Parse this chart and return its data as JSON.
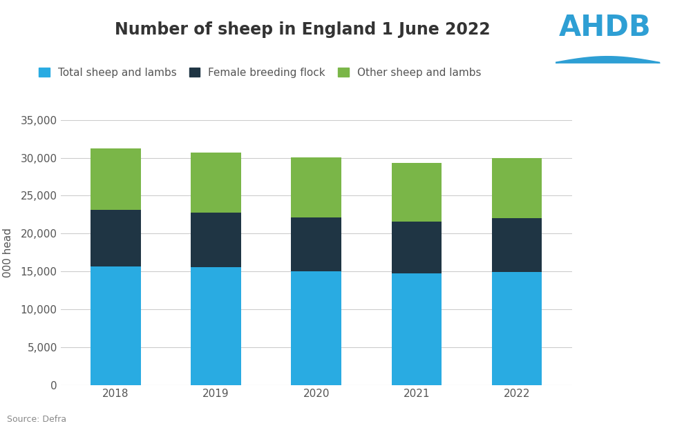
{
  "title": "Number of sheep in England 1 June 2022",
  "ylabel": "000 head",
  "source": "Source: Defra",
  "years": [
    "2018",
    "2019",
    "2020",
    "2021",
    "2022"
  ],
  "total_sheep_lambs": [
    15700,
    15600,
    15050,
    14750,
    14950
  ],
  "female_breeding_flock": [
    7450,
    7200,
    7050,
    6850,
    7050
  ],
  "other_sheep_lambs": [
    8050,
    7900,
    7950,
    7700,
    7950
  ],
  "color_total": "#29ABE2",
  "color_female": "#1F3544",
  "color_other": "#7AB648",
  "background_color": "#FFFFFF",
  "legend_labels": [
    "Total sheep and lambs",
    "Female breeding flock",
    "Other sheep and lambs"
  ],
  "ylim": [
    0,
    35000
  ],
  "yticks": [
    0,
    5000,
    10000,
    15000,
    20000,
    25000,
    30000,
    35000
  ],
  "bar_width": 0.5,
  "title_fontsize": 17,
  "axis_label_fontsize": 11,
  "tick_fontsize": 11,
  "legend_fontsize": 11,
  "source_fontsize": 9,
  "ahdb_color": "#2E9FD4"
}
